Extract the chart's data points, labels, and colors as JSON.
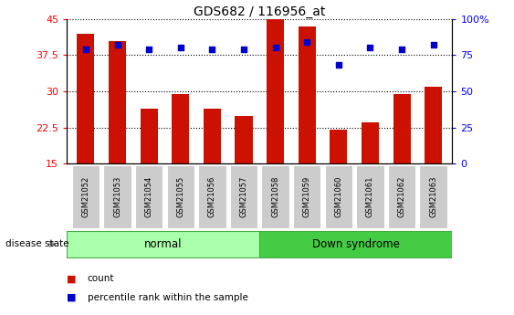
{
  "title": "GDS682 / 116956_at",
  "samples": [
    "GSM21052",
    "GSM21053",
    "GSM21054",
    "GSM21055",
    "GSM21056",
    "GSM21057",
    "GSM21058",
    "GSM21059",
    "GSM21060",
    "GSM21061",
    "GSM21062",
    "GSM21063"
  ],
  "counts": [
    42.0,
    40.5,
    26.5,
    29.5,
    26.5,
    25.0,
    45.0,
    43.5,
    22.0,
    23.5,
    29.5,
    31.0
  ],
  "percentiles": [
    79,
    82,
    79,
    80,
    79,
    79,
    80,
    84,
    68,
    80,
    79,
    82
  ],
  "ylim_left": [
    15,
    45
  ],
  "ylim_right": [
    0,
    100
  ],
  "left_ticks": [
    15,
    22.5,
    30,
    37.5,
    45
  ],
  "right_ticks": [
    0,
    25,
    50,
    75,
    100
  ],
  "bar_color": "#cc1100",
  "dot_color": "#0000cc",
  "normal_bg": "#aaffaa",
  "downsyndrome_bg": "#44cc44",
  "tick_label_bg": "#cccccc",
  "disease_state_label": "disease state",
  "normal_label": "normal",
  "downsyndrome_label": "Down syndrome",
  "legend_count": "count",
  "legend_pct": "percentile rank within the sample",
  "bar_width": 0.55
}
